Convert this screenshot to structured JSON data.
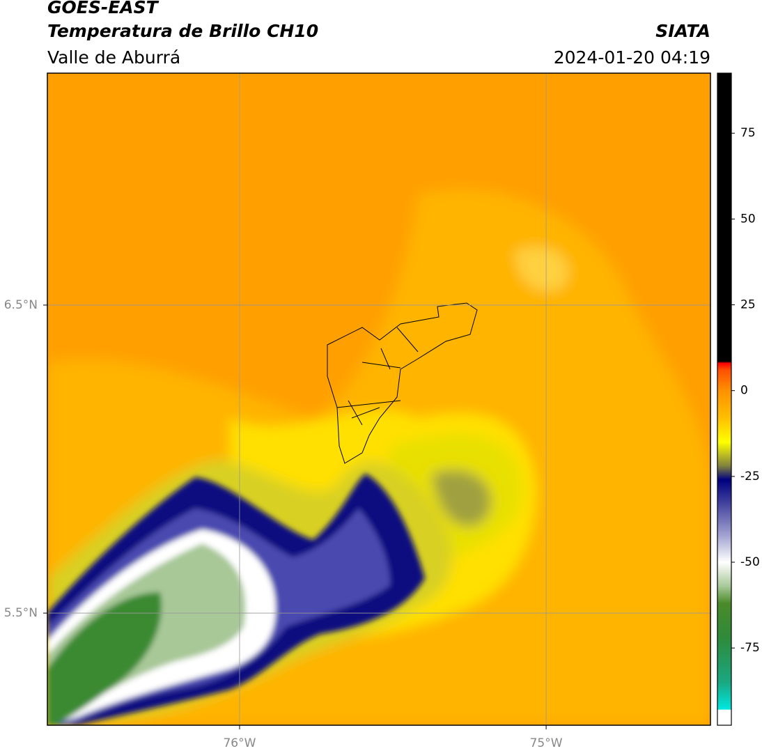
{
  "header": {
    "title": "GOES-EAST",
    "subtitle": "Temperatura de Brillo CH10",
    "region": "Valle de Aburrá",
    "source": "SIATA",
    "datetime": "2024-01-20 04:19"
  },
  "map": {
    "xlim": [
      -76.627,
      -74.464
    ],
    "ylim": [
      5.136,
      7.253
    ],
    "xticks": [
      {
        "value": -76,
        "label": "76°W"
      },
      {
        "value": -75,
        "label": "75°W"
      }
    ],
    "yticks": [
      {
        "value": 6.5,
        "label": "6.5°N"
      },
      {
        "value": 5.5,
        "label": "5.5°N"
      }
    ],
    "grid": true
  },
  "colorbar": {
    "clim": [
      -97.5,
      92.5
    ],
    "ticks": [
      -75,
      -50,
      -25,
      0,
      25,
      50,
      75
    ],
    "stops": [
      {
        "value": -97.5,
        "color": "#ffffff"
      },
      {
        "value": -93,
        "color": "#ffffff"
      },
      {
        "value": -92.9,
        "color": "#00e8e0"
      },
      {
        "value": -85,
        "color": "#1aa882"
      },
      {
        "value": -72,
        "color": "#2f8a3a"
      },
      {
        "value": -62,
        "color": "#4a8a2a"
      },
      {
        "value": -57,
        "color": "#a8c898"
      },
      {
        "value": -50,
        "color": "#ffffff"
      },
      {
        "value": -42,
        "color": "#a0a0d0"
      },
      {
        "value": -32,
        "color": "#3a3a9a"
      },
      {
        "value": -26,
        "color": "#000080"
      },
      {
        "value": -22,
        "color": "#808040"
      },
      {
        "value": -15,
        "color": "#ffff00"
      },
      {
        "value": -8,
        "color": "#ffc000"
      },
      {
        "value": 0,
        "color": "#ff9000"
      },
      {
        "value": 6,
        "color": "#ff5000"
      },
      {
        "value": 8,
        "color": "#ff0000"
      },
      {
        "value": 8.5,
        "color": "#000000"
      },
      {
        "value": 92.5,
        "color": "#000000"
      }
    ]
  }
}
